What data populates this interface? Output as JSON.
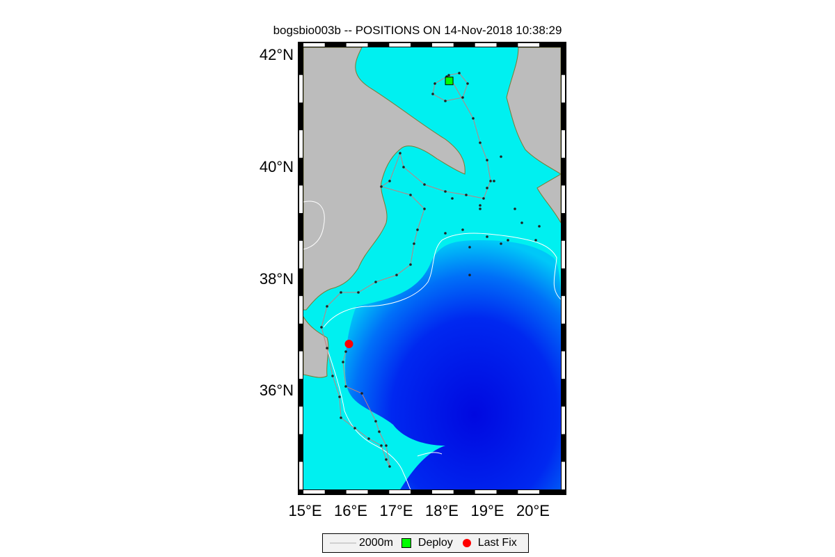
{
  "map": {
    "title": "bogsbio003b -- POSITIONS ON 14-Nov-2018 10:38:29",
    "lat_labels": [
      {
        "text": "42°N",
        "lat": 42
      },
      {
        "text": "40°N",
        "lat": 40
      },
      {
        "text": "38°N",
        "lat": 38
      },
      {
        "text": "36°N",
        "lat": 36
      }
    ],
    "lon_labels": [
      {
        "text": "15°E",
        "lon": 15
      },
      {
        "text": "16°E",
        "lon": 16
      },
      {
        "text": "17°E",
        "lon": 17
      },
      {
        "text": "18°E",
        "lon": 18
      },
      {
        "text": "19°E",
        "lon": 19
      },
      {
        "text": "20°E",
        "lon": 20
      }
    ],
    "lon_range": [
      14.9,
      20.55
    ],
    "lat_range": [
      34.25,
      42.15
    ],
    "deploy_position": {
      "lon": 18.1,
      "lat": 41.55
    },
    "last_fix_position": {
      "lon": 15.9,
      "lat": 36.85
    },
    "colors": {
      "land": "#bcbcbc",
      "shallow_sea": "#00f0f0",
      "deep_sea": "#0010e8",
      "isobath": "#ffffff",
      "track": "#c08080",
      "deploy": "#00ff00",
      "last_fix": "#ff0000"
    }
  },
  "legend": {
    "isobath_label": "2000m",
    "deploy_label": "Deploy",
    "last_fix_label": "Last Fix"
  }
}
